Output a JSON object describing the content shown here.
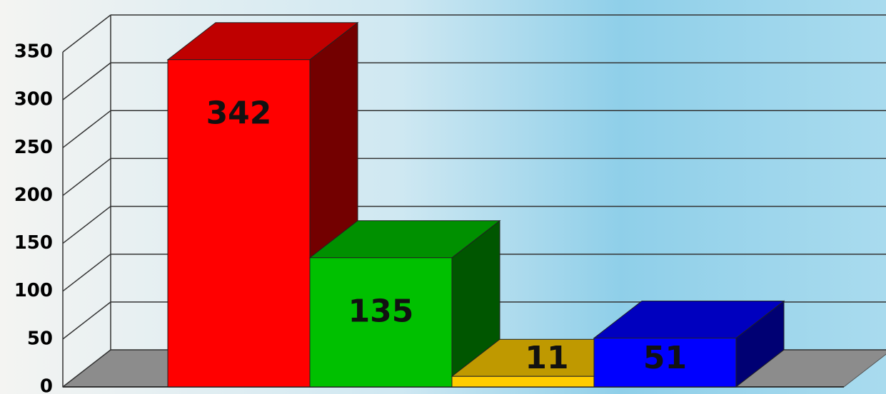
{
  "chart_data": {
    "type": "bar3d",
    "categories": [
      null,
      null,
      null,
      null
    ],
    "values": [
      342,
      135,
      11,
      51
    ],
    "colors": [
      "#ff0000",
      "#00c000",
      "#ffcc00",
      "#0000ff"
    ],
    "ylim": [
      0,
      350
    ],
    "yticks": [
      0,
      50,
      100,
      150,
      200,
      250,
      300,
      350
    ],
    "grid": true
  }
}
